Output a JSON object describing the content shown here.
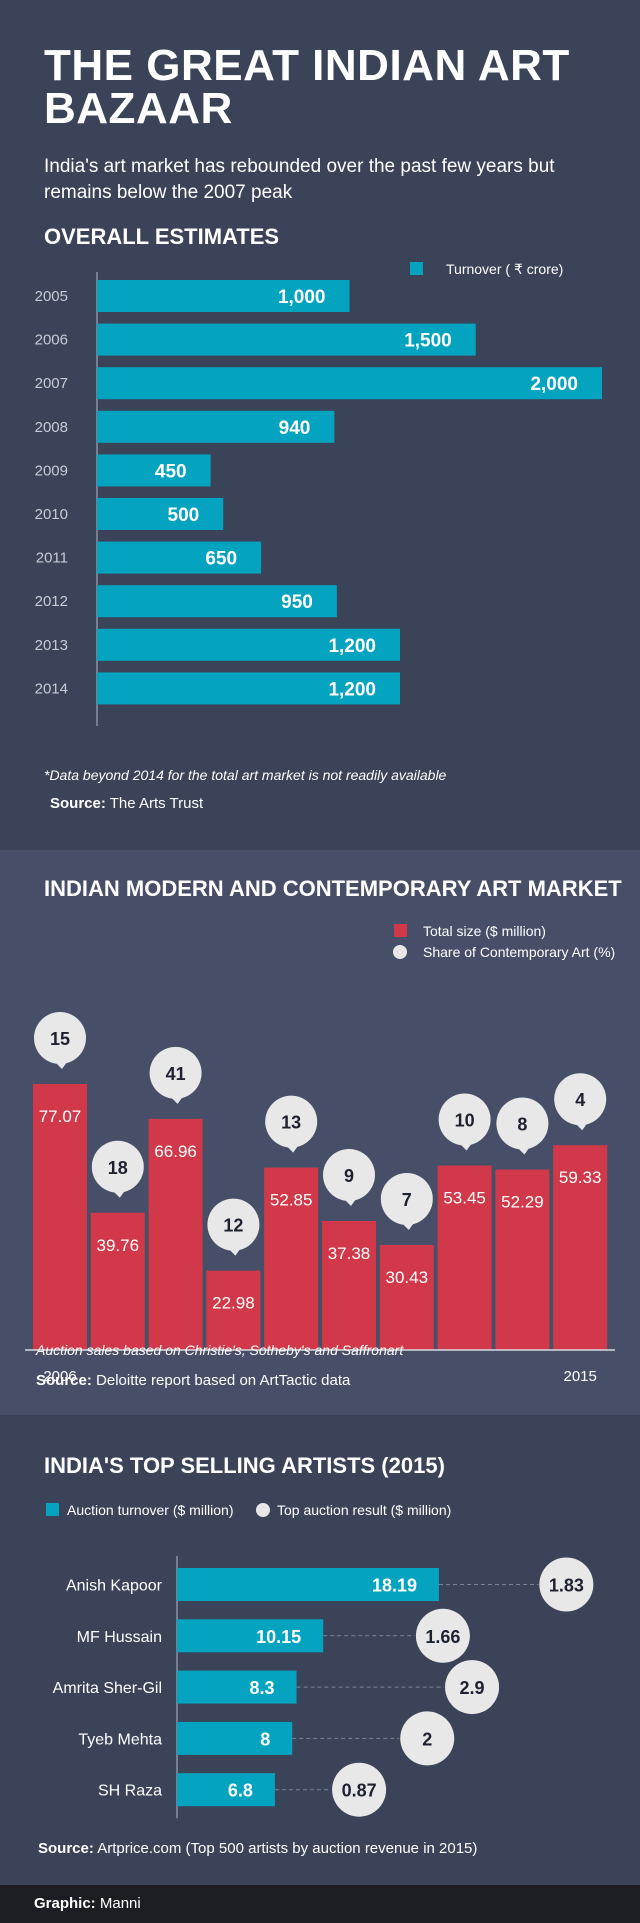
{
  "header": {
    "title_line1": "THE GREAT INDIAN ART",
    "title_line2": "BAZAAR",
    "subtitle_line1": "India's art market has rebounded over the past few years but",
    "subtitle_line2": "remains below the 2007 peak"
  },
  "colors": {
    "background": "#3a4357",
    "section2_background": "#474f68",
    "teal": "#04a3c0",
    "red": "#d1394a",
    "bubble": "#e8e8e8",
    "footer": "#1c1e24"
  },
  "chart_data": [
    {
      "type": "bar",
      "orientation": "horizontal",
      "title": "OVERALL ESTIMATES",
      "legend": "Turnover ( ₹ crore)",
      "categories": [
        "2005",
        "2006",
        "2007",
        "2008",
        "2009",
        "2010",
        "2011",
        "2012",
        "2013",
        "2014"
      ],
      "values": [
        1000,
        1500,
        2000,
        940,
        450,
        500,
        650,
        950,
        1200,
        1200
      ],
      "value_labels": [
        "1,000",
        "1,500",
        "2,000",
        "940",
        "450",
        "500",
        "650",
        "950",
        "1,200",
        "1,200"
      ],
      "xlim": [
        0,
        2000
      ],
      "note": "*Data beyond 2014 for the total art market is not readily available",
      "source_label": "Source:",
      "source_text": "The Arts Trust"
    },
    {
      "type": "bar",
      "title": "INDIAN MODERN AND CONTEMPORARY ART MARKET",
      "x_start_label": "2006",
      "x_end_label": "2015",
      "series": [
        {
          "name": "Total size ($ million)",
          "values": [
            77.07,
            39.76,
            66.96,
            22.98,
            52.85,
            37.38,
            30.43,
            53.45,
            52.29,
            59.33
          ]
        },
        {
          "name": "Share of Contemporary Art (%)",
          "values": [
            15,
            18,
            41,
            12,
            13,
            9,
            7,
            10,
            8,
            4
          ]
        }
      ],
      "ylim": [
        0,
        77.07
      ],
      "note": "Auction sales based on Christie's, Sotheby's and Saffronart",
      "source_label": "Source:",
      "source_text": "Deloitte report based on ArtTactic data"
    },
    {
      "type": "bar",
      "orientation": "horizontal",
      "title": "INDIA'S TOP SELLING ARTISTS (2015)",
      "categories": [
        "Anish Kapoor",
        "MF Hussain",
        "Amrita Sher-Gil",
        "Tyeb Mehta",
        "SH Raza"
      ],
      "series": [
        {
          "name": "Auction turnover ($ million)",
          "values": [
            18.19,
            10.15,
            8.3,
            8,
            6.8
          ]
        },
        {
          "name": "Top auction result ($ million)",
          "values": [
            1.83,
            1.66,
            2.9,
            2,
            0.87
          ]
        }
      ],
      "xlim": [
        0,
        18.19
      ],
      "source_label": "Source:",
      "source_text": "Artprice.com (Top 500 artists by auction revenue in 2015)"
    }
  ],
  "footer": {
    "label": "Graphic:",
    "name": "Manni"
  }
}
